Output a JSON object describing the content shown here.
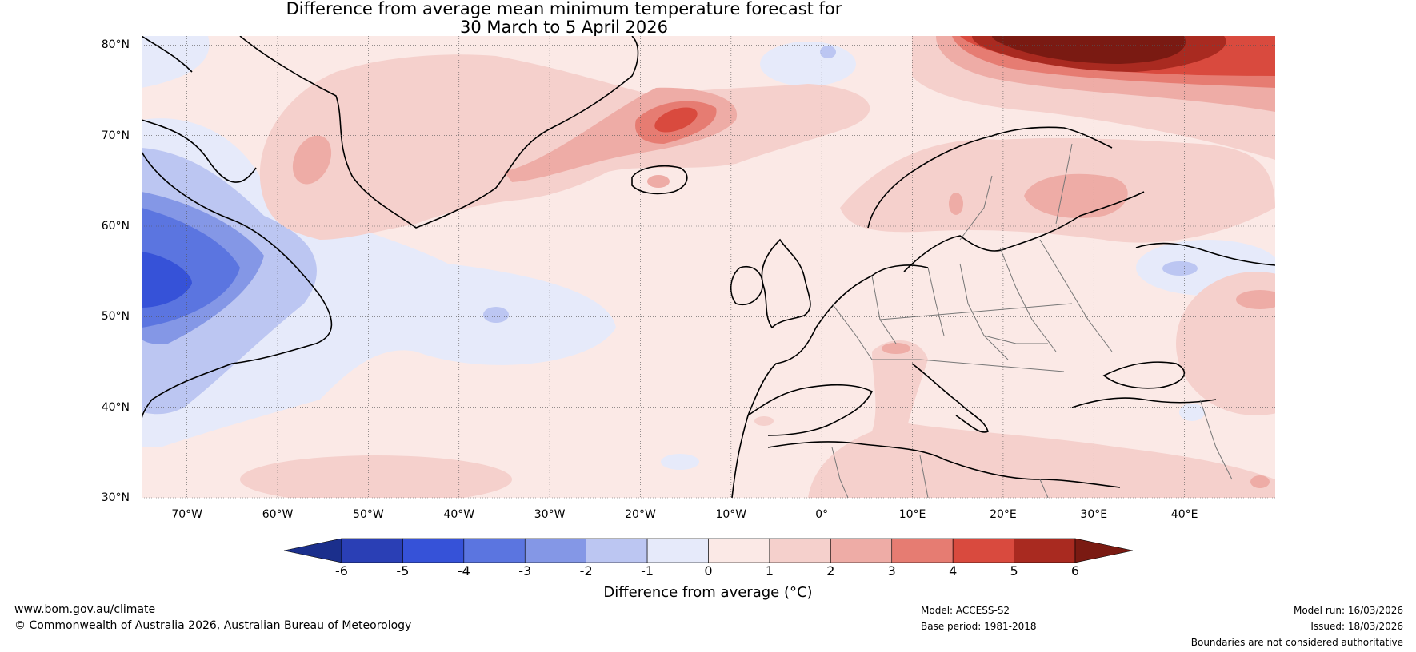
{
  "title_line1": "Difference from average mean minimum temperature forecast for",
  "title_line2": "30 March to 5 April 2026",
  "map": {
    "region": "North Atlantic and Europe",
    "lon_range": [
      -75,
      50
    ],
    "lat_range": [
      30,
      81
    ],
    "lat_labels": [
      "80°N",
      "70°N",
      "60°N",
      "50°N",
      "40°N",
      "30°N"
    ],
    "lon_labels": [
      "70°W",
      "60°W",
      "50°W",
      "40°W",
      "30°W",
      "20°W",
      "10°W",
      "0°",
      "10°E",
      "20°E",
      "30°E",
      "40°E"
    ],
    "background_anomaly_color": "#fbe9e6"
  },
  "colorbar": {
    "title": "Difference from average (°C)",
    "ticks": [
      "-6",
      "-5",
      "-4",
      "-3",
      "-2",
      "-1",
      "0",
      "1",
      "2",
      "3",
      "4",
      "5",
      "6"
    ],
    "under_color": "#1b2f8c",
    "over_color": "#7a1a12",
    "colors": [
      "#2a3fb5",
      "#3652d8",
      "#5b75e0",
      "#8497e6",
      "#bcc6f2",
      "#e6eafa",
      "#fbe9e6",
      "#f5d0cc",
      "#eeaca6",
      "#e67c72",
      "#d94a3e",
      "#a92a20"
    ]
  },
  "footer": {
    "website": "www.bom.gov.au/climate",
    "copyright": "© Commonwealth of Australia 2026, Australian Bureau of Meteorology",
    "model": "Model: ACCESS-S2",
    "base_period": "Base period: 1981-2018",
    "model_run": "Model run: 16/03/2026",
    "issued": "Issued: 18/03/2026",
    "disclaimer": "Boundaries are not considered authoritative"
  }
}
